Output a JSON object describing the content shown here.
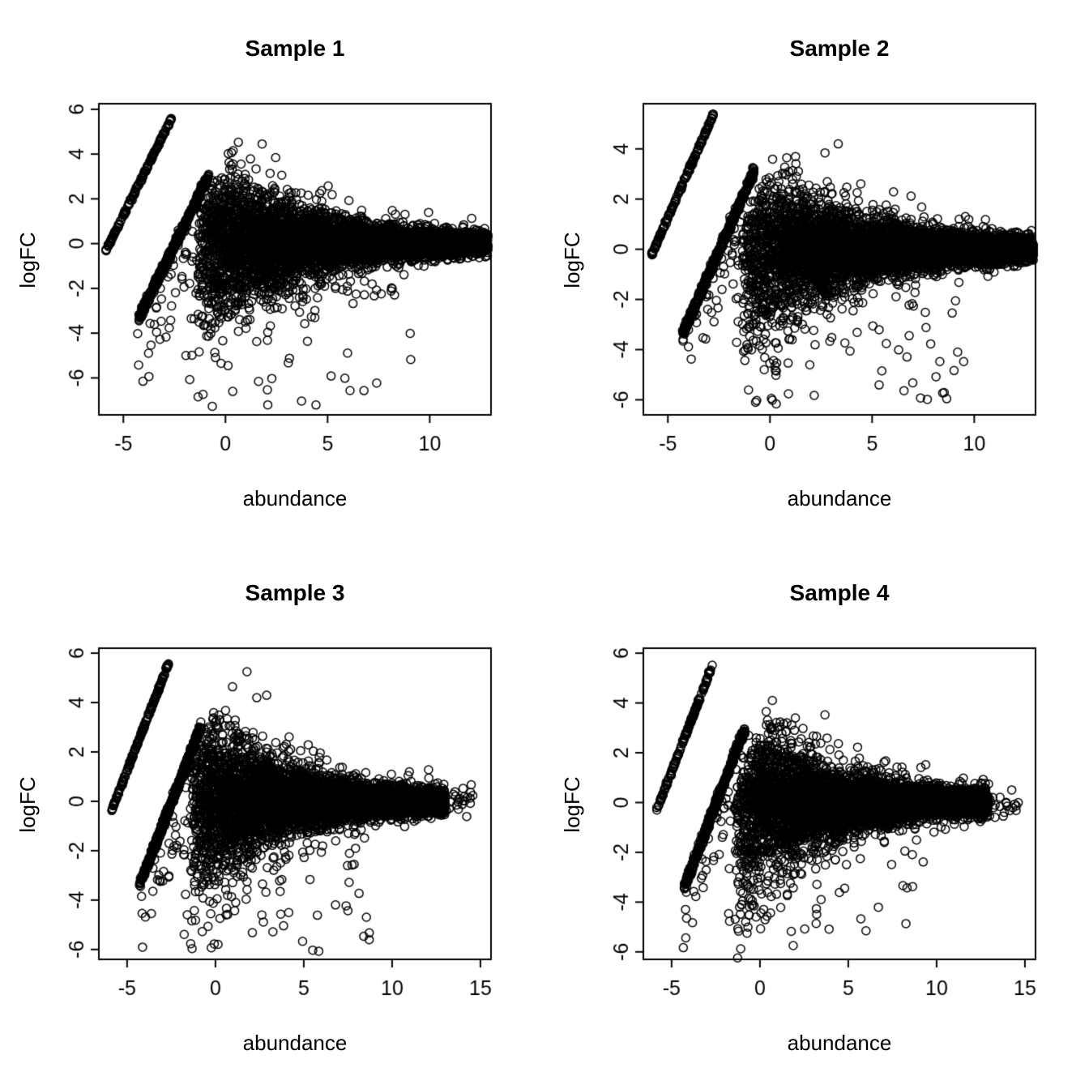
{
  "page": {
    "background": "#ffffff",
    "layout": "2x2-scatter-panels"
  },
  "chart_data": [
    {
      "type": "scatter",
      "title": "Sample 1",
      "xlabel": "abundance",
      "ylabel": "logFC",
      "marker": "open-circle",
      "color": "#000000",
      "xlim": [
        -6.2,
        13.0
      ],
      "ylim": [
        -7.65,
        6.25
      ],
      "xticks": [
        -5,
        0,
        5,
        10
      ],
      "yticks": [
        -6,
        -4,
        -2,
        0,
        2,
        4,
        6
      ],
      "grid": false,
      "legend": "none",
      "seed": 11,
      "point_generation": {
        "streaks": [
          {
            "slope": 1.85,
            "intercept": 10.5,
            "x0": -5.85,
            "x1": -2.62,
            "n": 170,
            "jitter": 0.04
          },
          {
            "slope": 1.85,
            "intercept": 4.55,
            "x0": -4.25,
            "x1": -0.82,
            "n": 430,
            "jitter": 0.1
          }
        ],
        "cloud": {
          "n": 6200,
          "xmin": -1.35,
          "xmax": 12.85,
          "xpow": 0.85,
          "sd_a": 1.5,
          "sd_decay": 4.0,
          "sd_min": 0.16,
          "clip": 3.9
        },
        "neg_outliers": {
          "n": 62,
          "xmin": -2.0,
          "xmax": 9.8,
          "ymin": -7.3,
          "ymax": -1.9
        },
        "under_scatter": {
          "n": 46,
          "xmin": -4.3,
          "xmax": -0.6,
          "base": 4.55,
          "drop_min": 0.4,
          "drop_max": 3.6
        }
      }
    },
    {
      "type": "scatter",
      "title": "Sample 2",
      "xlabel": "abundance",
      "ylabel": "logFC",
      "marker": "open-circle",
      "color": "#000000",
      "xlim": [
        -6.2,
        13.0
      ],
      "ylim": [
        -6.6,
        5.8
      ],
      "xticks": [
        -5,
        0,
        5,
        10
      ],
      "yticks": [
        -6,
        -4,
        -2,
        0,
        2,
        4
      ],
      "grid": false,
      "legend": "none",
      "seed": 22,
      "point_generation": {
        "streaks": [
          {
            "slope": 1.85,
            "intercept": 10.5,
            "x0": -5.8,
            "x1": -2.78,
            "n": 170,
            "jitter": 0.04
          },
          {
            "slope": 1.85,
            "intercept": 4.55,
            "x0": -4.3,
            "x1": -0.78,
            "n": 460,
            "jitter": 0.1
          }
        ],
        "cloud": {
          "n": 6300,
          "xmin": -1.35,
          "xmax": 12.9,
          "xpow": 0.85,
          "sd_a": 1.5,
          "sd_decay": 4.0,
          "sd_min": 0.16,
          "clip": 3.4
        },
        "neg_outliers": {
          "n": 58,
          "xmin": -1.8,
          "xmax": 9.5,
          "ymin": -6.3,
          "ymax": -1.9
        },
        "under_scatter": {
          "n": 42,
          "xmin": -4.3,
          "xmax": -0.7,
          "base": 4.55,
          "drop_min": 0.3,
          "drop_max": 2.6
        }
      }
    },
    {
      "type": "scatter",
      "title": "Sample 3",
      "xlabel": "abundance",
      "ylabel": "logFC",
      "marker": "open-circle",
      "color": "#000000",
      "xlim": [
        -6.6,
        15.6
      ],
      "ylim": [
        -6.4,
        6.2
      ],
      "xticks": [
        -5,
        0,
        5,
        10,
        15
      ],
      "yticks": [
        -6,
        -4,
        -2,
        0,
        2,
        4,
        6
      ],
      "grid": false,
      "legend": "none",
      "seed": 33,
      "point_generation": {
        "streaks": [
          {
            "slope": 1.85,
            "intercept": 10.5,
            "x0": -5.9,
            "x1": -2.65,
            "n": 170,
            "jitter": 0.04
          },
          {
            "slope": 1.85,
            "intercept": 4.55,
            "x0": -4.3,
            "x1": -0.8,
            "n": 440,
            "jitter": 0.1
          }
        ],
        "cloud": {
          "n": 6200,
          "xmin": -1.35,
          "xmax": 13.0,
          "xpow": 0.85,
          "sd_a": 1.5,
          "sd_decay": 4.0,
          "sd_min": 0.16,
          "clip": 3.9
        },
        "tail": {
          "n": 26,
          "xmin": 12.9,
          "xmax": 14.7,
          "sd": 0.35
        },
        "neg_outliers": {
          "n": 55,
          "xmin": -1.8,
          "xmax": 9.0,
          "ymin": -6.2,
          "ymax": -1.9
        },
        "under_scatter": {
          "n": 44,
          "xmin": -4.3,
          "xmax": -0.6,
          "base": 4.55,
          "drop_min": 0.4,
          "drop_max": 3.0
        }
      }
    },
    {
      "type": "scatter",
      "title": "Sample 4",
      "xlabel": "abundance",
      "ylabel": "logFC",
      "marker": "open-circle",
      "color": "#000000",
      "xlim": [
        -6.6,
        15.6
      ],
      "ylim": [
        -6.3,
        6.2
      ],
      "xticks": [
        -5,
        0,
        5,
        10,
        15
      ],
      "yticks": [
        -6,
        -4,
        -2,
        0,
        2,
        4,
        6
      ],
      "grid": false,
      "legend": "none",
      "seed": 44,
      "point_generation": {
        "streaks": [
          {
            "slope": 1.85,
            "intercept": 10.5,
            "x0": -5.85,
            "x1": -2.7,
            "n": 170,
            "jitter": 0.04
          },
          {
            "slope": 1.85,
            "intercept": 4.55,
            "x0": -4.3,
            "x1": -0.85,
            "n": 440,
            "jitter": 0.1
          }
        ],
        "cloud": {
          "n": 6300,
          "xmin": -1.35,
          "xmax": 12.9,
          "xpow": 0.85,
          "sd_a": 1.5,
          "sd_decay": 4.0,
          "sd_min": 0.16,
          "clip": 3.0
        },
        "tail": {
          "n": 24,
          "xmin": 12.9,
          "xmax": 14.7,
          "sd": 0.3
        },
        "neg_outliers": {
          "n": 50,
          "xmin": -1.8,
          "xmax": 9.3,
          "ymin": -5.4,
          "ymax": -1.9
        },
        "under_scatter": {
          "n": 42,
          "xmin": -4.35,
          "xmax": -0.6,
          "base": 4.55,
          "drop_min": 0.3,
          "drop_max": 2.4
        }
      }
    }
  ]
}
